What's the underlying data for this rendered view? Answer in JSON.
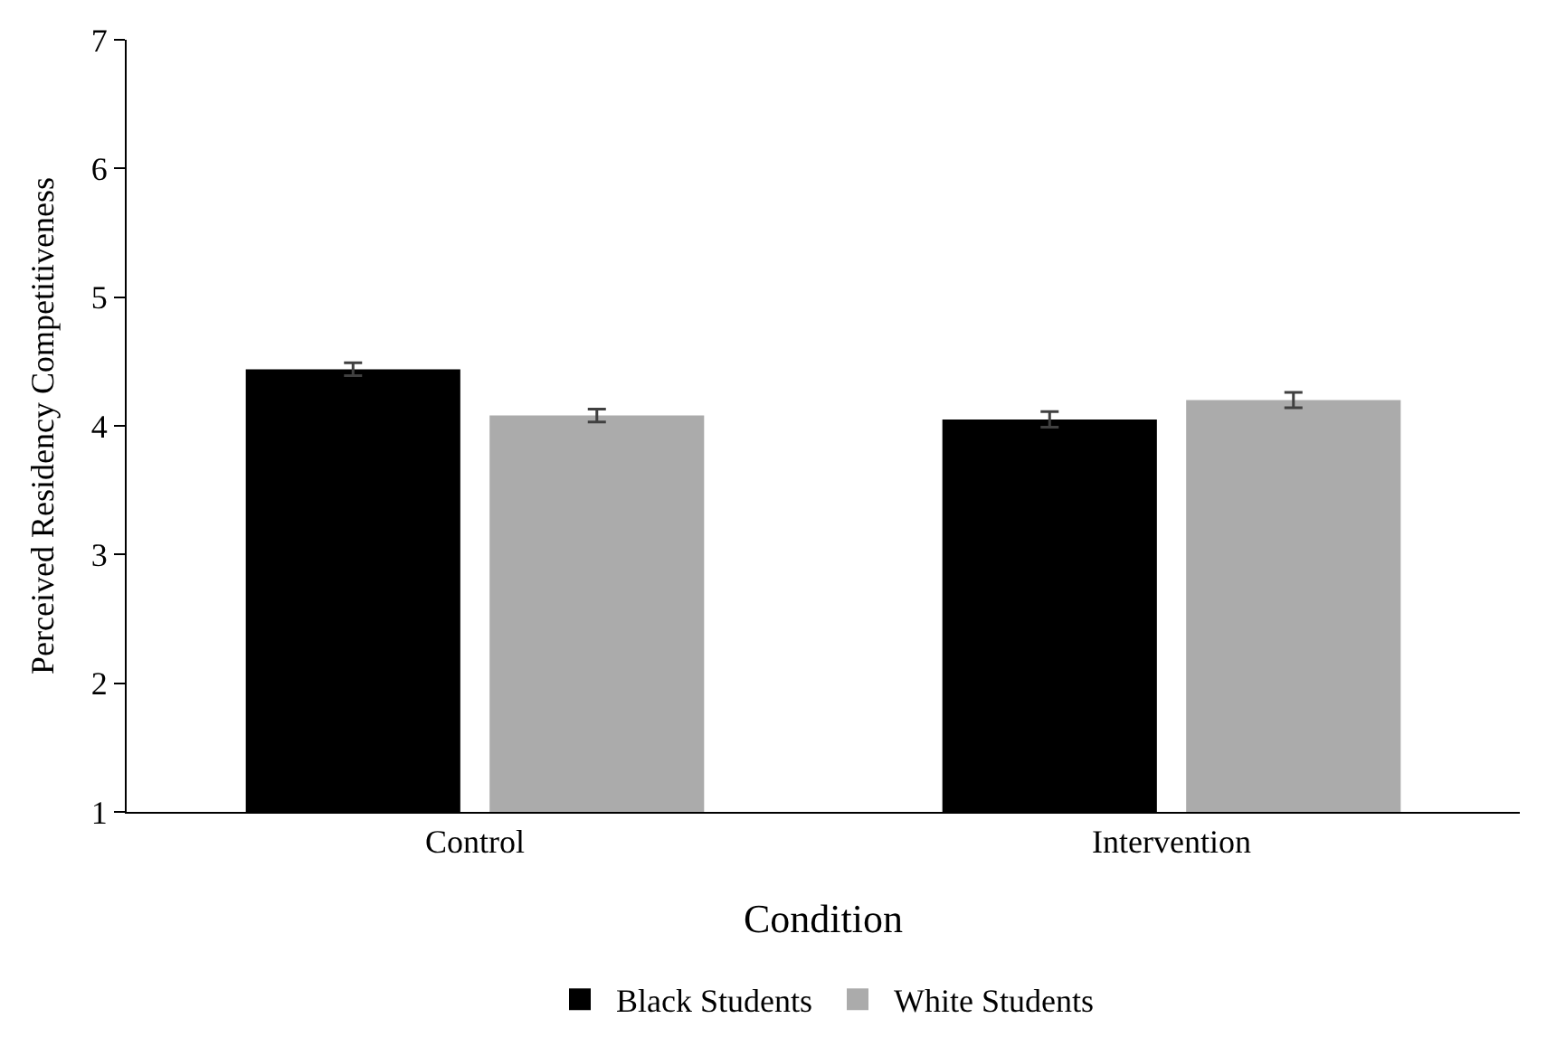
{
  "chart_data": {
    "type": "bar",
    "xlabel": "Condition",
    "ylabel": "Perceived Residency Competitiveness",
    "categories": [
      "Control",
      "Intervention"
    ],
    "series": [
      {
        "name": "Black Students",
        "color": "#000000",
        "values": [
          4.44,
          4.05
        ],
        "errors": [
          0.05,
          0.06
        ]
      },
      {
        "name": "White Students",
        "color": "#ababab",
        "values": [
          4.08,
          4.2
        ],
        "errors": [
          0.05,
          0.06
        ]
      }
    ],
    "ylim": [
      1,
      7
    ],
    "yticks": [
      1,
      2,
      3,
      4,
      5,
      6,
      7
    ],
    "grid": false,
    "legend": "bottom"
  }
}
